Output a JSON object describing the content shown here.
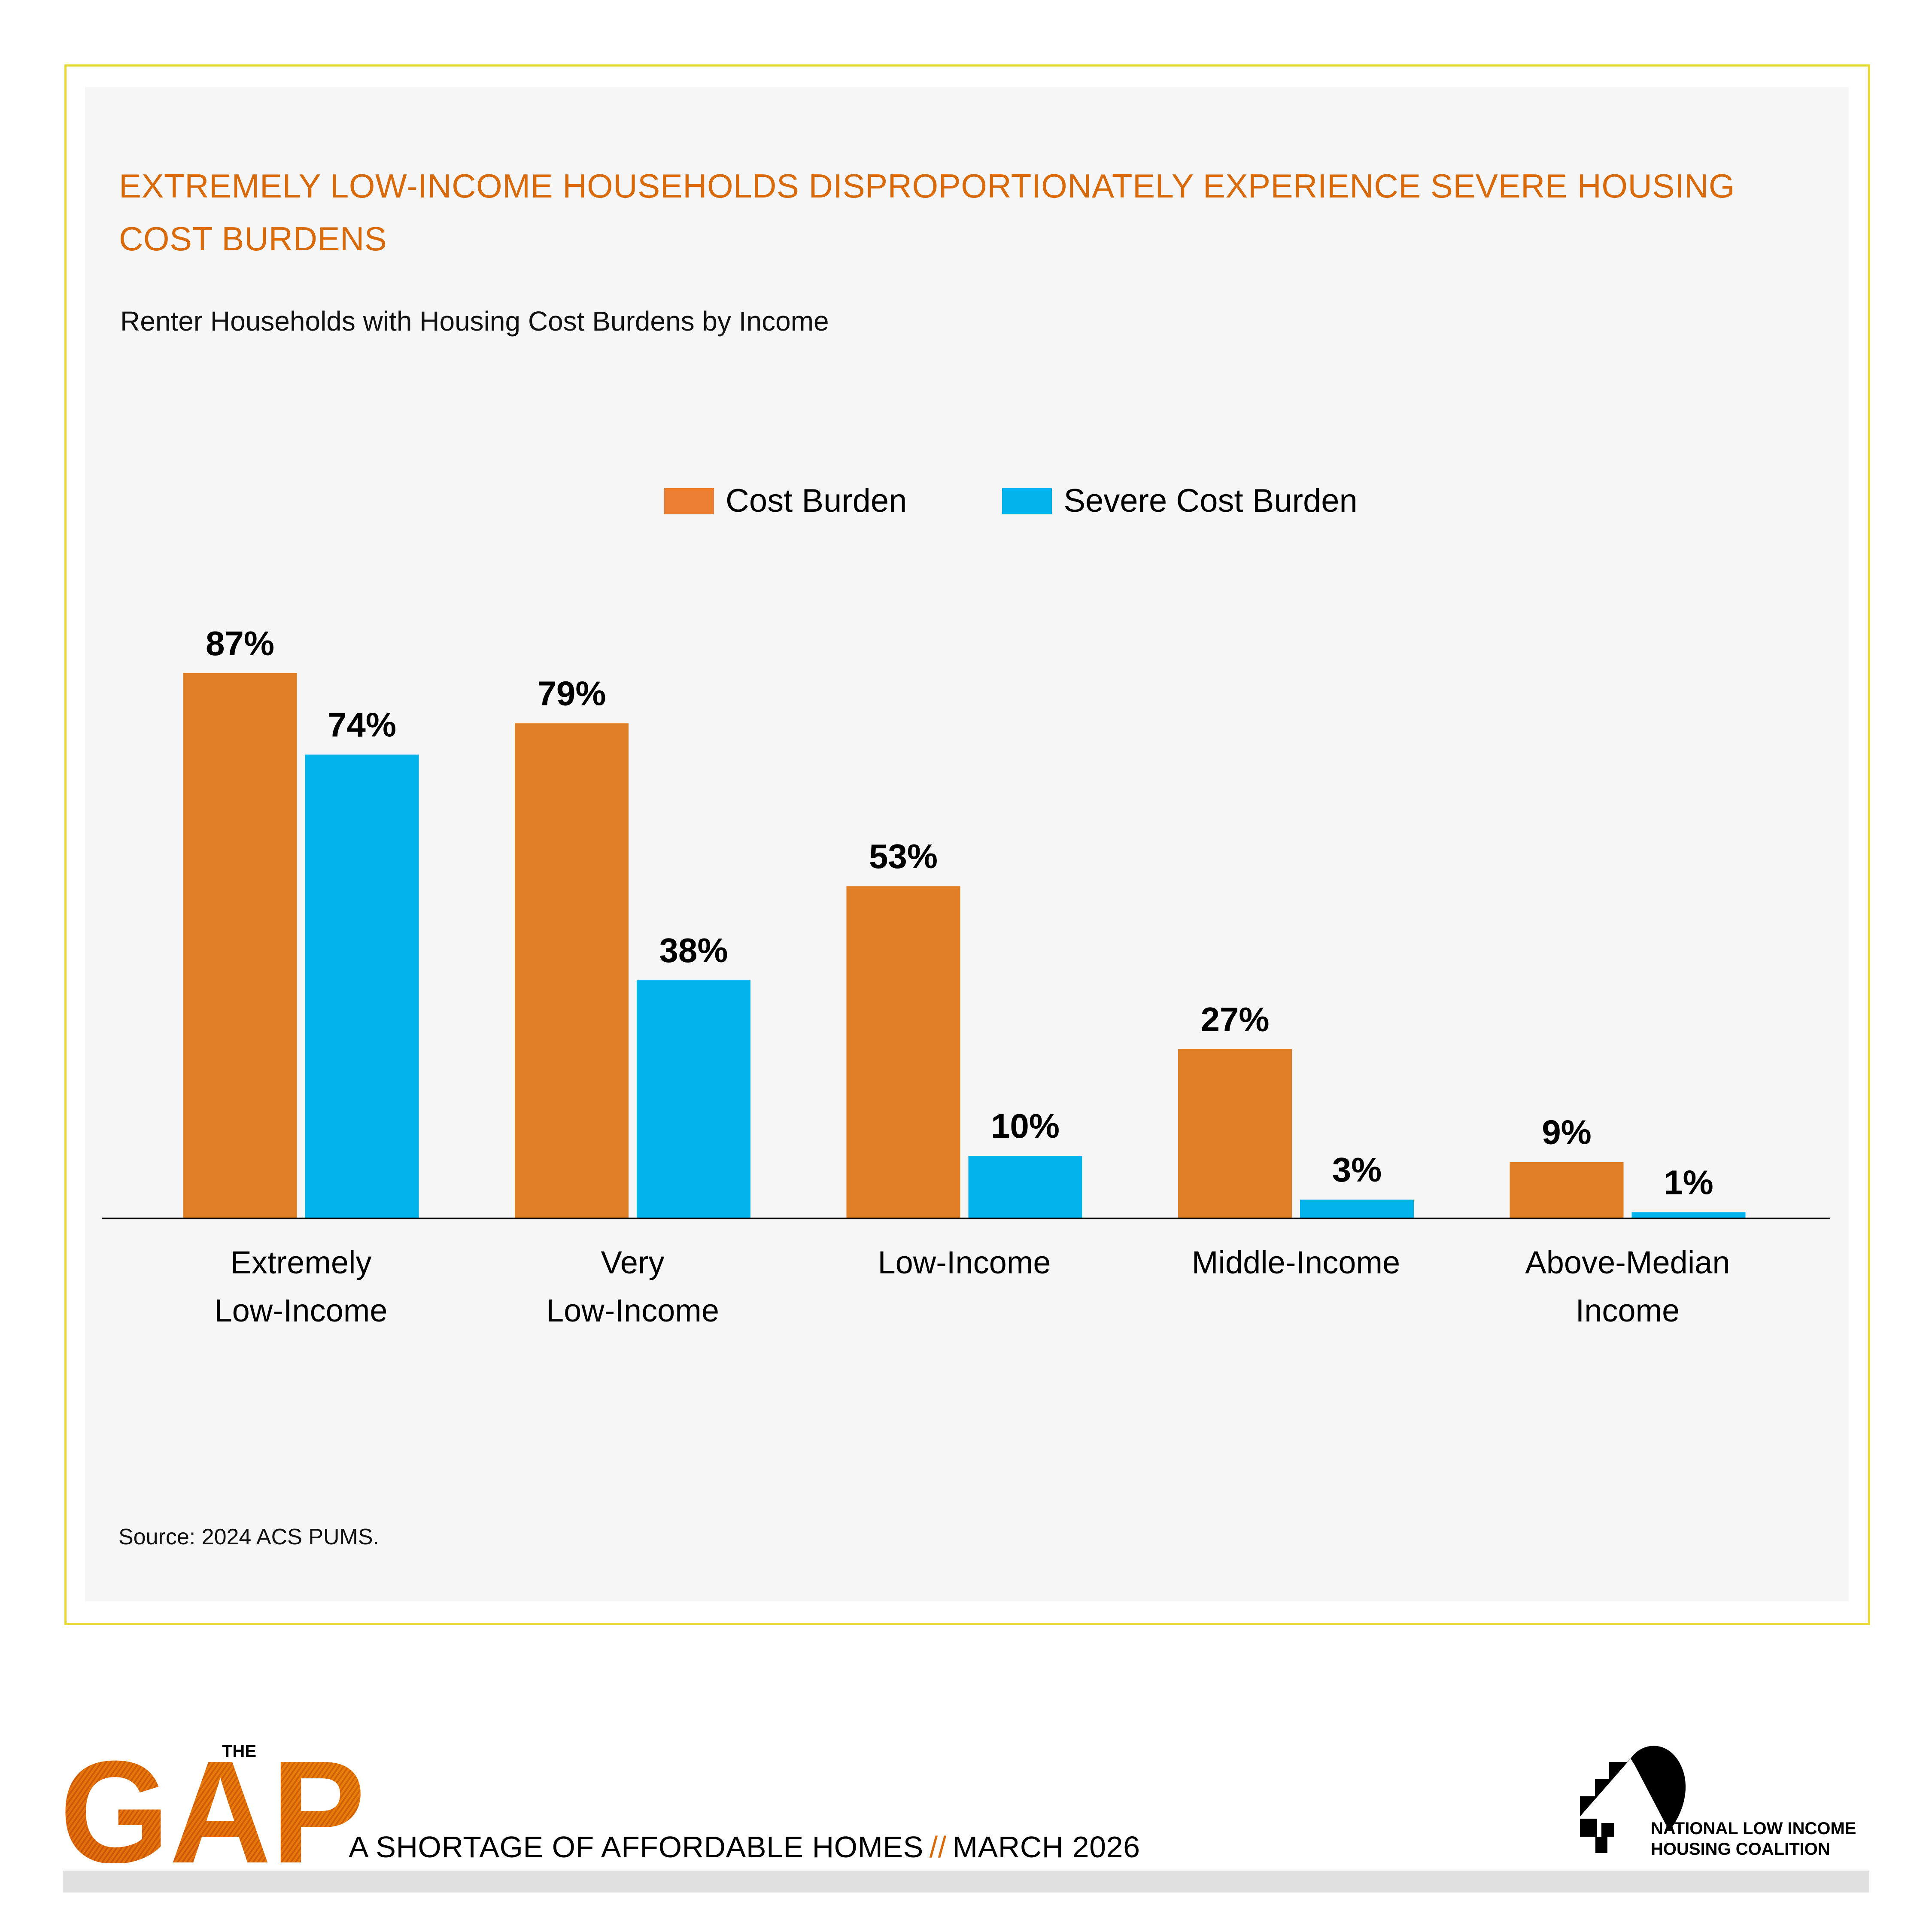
{
  "header": {
    "title": "EXTREMELY LOW-INCOME HOUSEHOLDS DISPROPORTIONATELY EXPERIENCE SEVERE HOUSING COST BURDENS",
    "subtitle": "Renter Households with Housing Cost Burdens by Income"
  },
  "colors": {
    "accent_orange": "#E07E25",
    "legend_orange": "#EB7F31",
    "accent_blue": "#02B4EC",
    "title_orange": "#D96A0B",
    "frame_yellow": "#E9D935",
    "panel_bg": "#F5F6F5"
  },
  "legend": [
    {
      "label": "Cost Burden",
      "color": "#EB7F31"
    },
    {
      "label": "Severe Cost Burden",
      "color": "#02B4EC"
    }
  ],
  "chart_data": {
    "type": "bar",
    "title": "Renter Households with Housing Cost Burdens by Income",
    "xlabel": "",
    "ylabel": "",
    "ylim": [
      0,
      100
    ],
    "grid": false,
    "legend_position": "top-center",
    "categories": [
      [
        "Extremely",
        "Low-Income"
      ],
      [
        "Very",
        "Low-Income"
      ],
      [
        "Low-Income"
      ],
      [
        "Middle-Income"
      ],
      [
        "Above-Median",
        "Income"
      ]
    ],
    "series": [
      {
        "name": "Cost Burden",
        "color": "#E07E25",
        "values": [
          87,
          79,
          53,
          27,
          9
        ],
        "labels": [
          "87%",
          "79%",
          "53%",
          "27%",
          "9%"
        ]
      },
      {
        "name": "Severe Cost Burden",
        "color": "#02B4EC",
        "values": [
          74,
          38,
          10,
          3,
          1
        ],
        "labels": [
          "74%",
          "38%",
          "10%",
          "3%",
          "1%"
        ]
      }
    ]
  },
  "source": "Source: 2024 ACS PUMS.",
  "footer": {
    "logo_the": "THE",
    "logo_gap": "GAP",
    "tagline_left": "A SHORTAGE OF AFFORDABLE HOMES",
    "tagline_sep": "//",
    "tagline_right": "MARCH 2026",
    "org_line1": "NATIONAL LOW INCOME",
    "org_line2": "HOUSING COALITION"
  }
}
